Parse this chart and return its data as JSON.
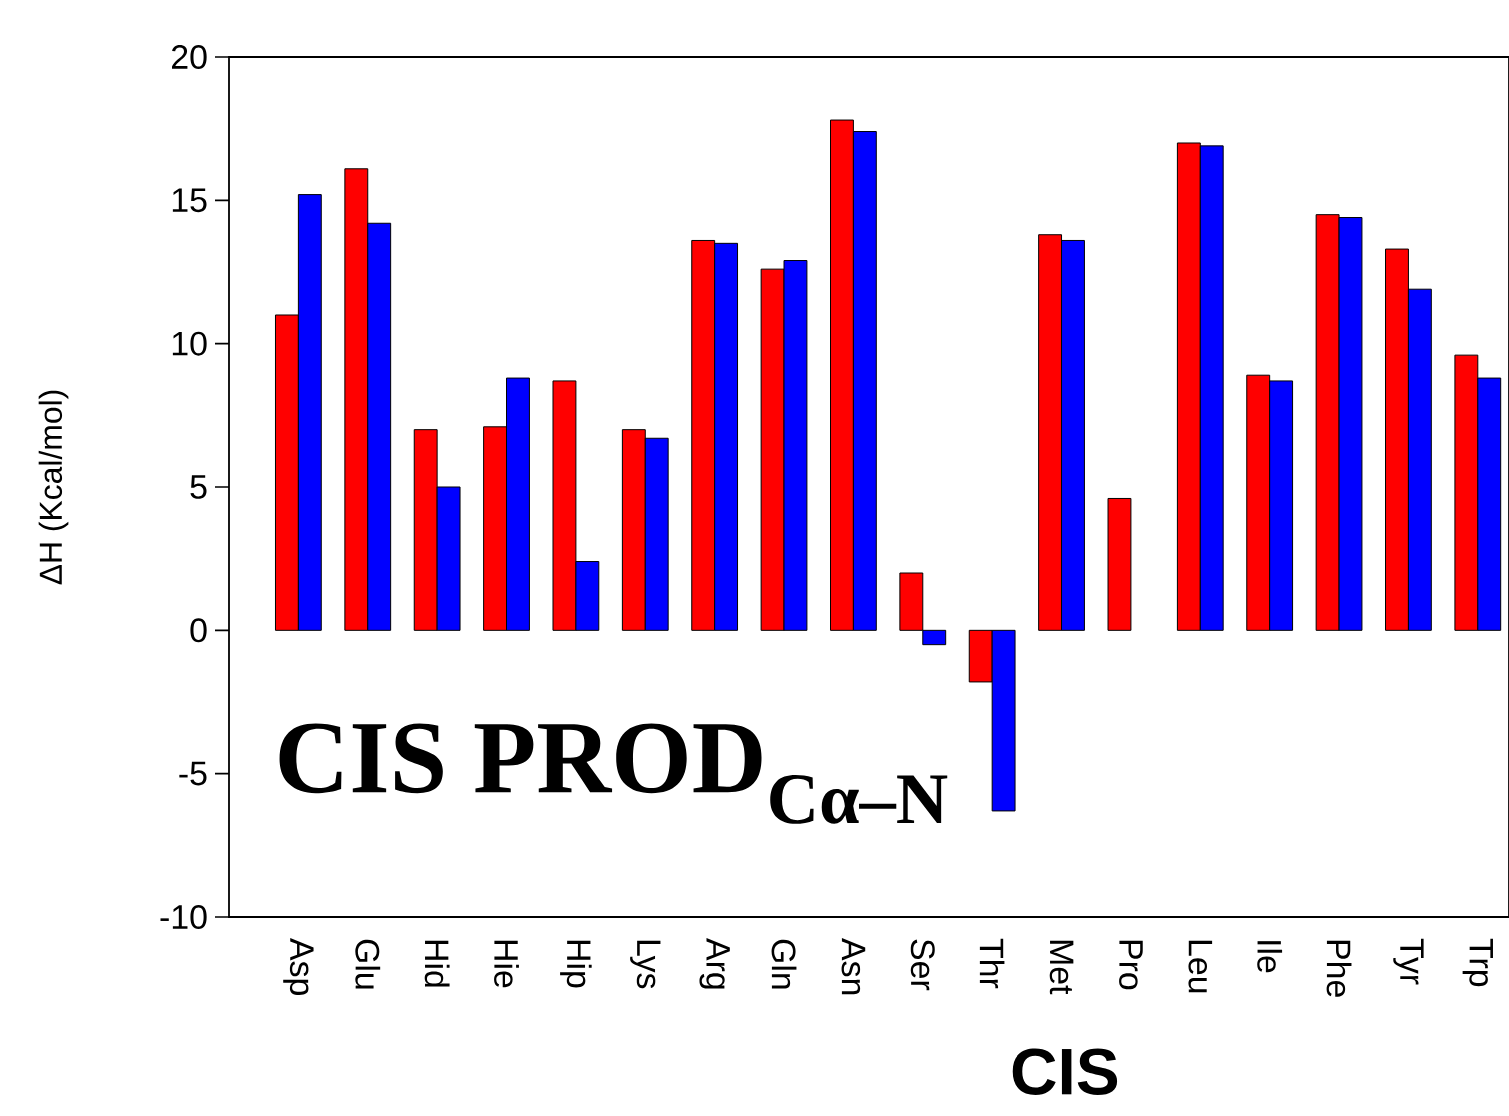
{
  "chart_data": {
    "type": "bar",
    "xlabel": "CIS",
    "ylabel": "ΔH (Kcal/mol)",
    "annotations": [
      "CIS  PROD$_{Cα–N}$"
    ],
    "categories": [
      "Asp",
      "Glu",
      "Hid",
      "Hie",
      "Hip",
      "Lys",
      "Arg",
      "Gln",
      "Asn",
      "Ser",
      "Thr",
      "Met",
      "Pro",
      "Leu",
      "Ile",
      "Phe",
      "Tyr",
      "Trp"
    ],
    "series": [
      {
        "color": "#ff0000",
        "values": [
          11.0,
          16.1,
          7.0,
          7.1,
          8.7,
          7.0,
          13.6,
          12.6,
          17.8,
          2.0,
          -1.8,
          13.8,
          4.6,
          17.0,
          8.9,
          14.5,
          13.3,
          9.6
        ]
      },
      {
        "color": "#0000ff",
        "values": [
          15.2,
          14.2,
          5.0,
          8.8,
          2.4,
          6.7,
          13.5,
          12.9,
          17.4,
          -0.5,
          -6.3,
          13.6,
          null,
          16.9,
          8.7,
          14.4,
          11.9,
          8.8
        ]
      }
    ],
    "ylim": [
      -10,
      20
    ],
    "yticks": [
      -10,
      -5,
      0,
      5,
      10,
      15,
      20
    ]
  }
}
